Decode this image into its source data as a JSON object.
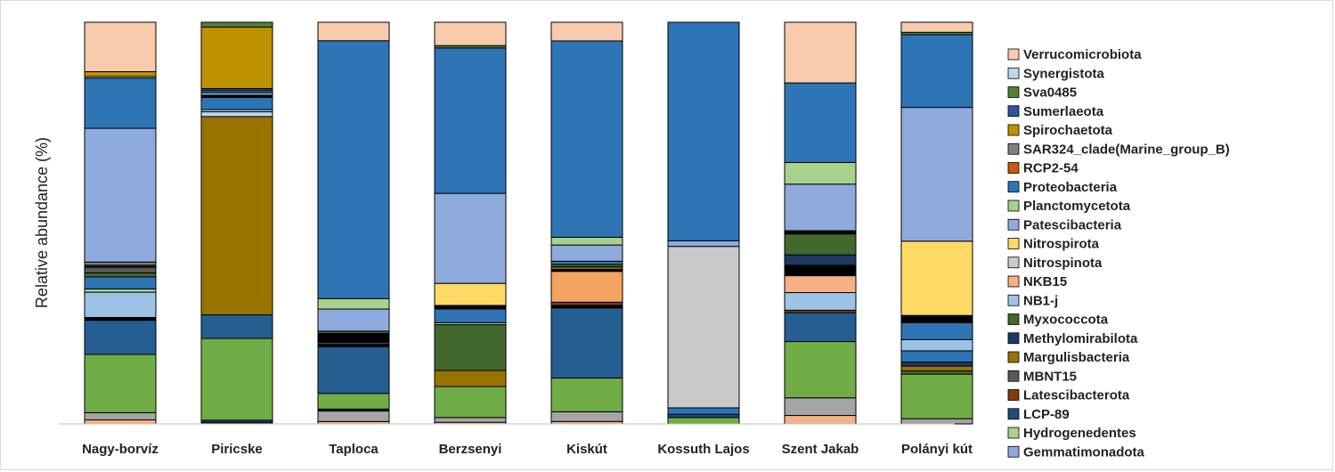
{
  "chart_data": {
    "type": "bar",
    "stacked": true,
    "percent": true,
    "ylabel": "Relative abundance (%)",
    "xlabel": "",
    "ylim": [
      0,
      100
    ],
    "grid": false,
    "legend_position": "right",
    "categories": [
      "Nagy-borvíz",
      "Piricske",
      "Taploca",
      "Berzsenyi",
      "Kiskút",
      "Kossuth Lajos",
      "Szent Jakab",
      "Polányi kút"
    ],
    "series": [
      {
        "name": "Gemmatimonadota",
        "color": "#8eaadb",
        "values": [
          0,
          0,
          0,
          0,
          0,
          0,
          0,
          0
        ]
      },
      {
        "name": "Hydrogenedentes",
        "color": "#a9d18e",
        "values": [
          0,
          0,
          0,
          0,
          0,
          0,
          0,
          0
        ]
      },
      {
        "name": "LCP-89",
        "color": "#1f4e79",
        "values": [
          0,
          0,
          0,
          0,
          0,
          0,
          0,
          0
        ]
      },
      {
        "name": "Latescibacterota",
        "color": "#843c0c",
        "values": [
          0,
          0,
          0,
          0,
          0,
          0,
          0,
          0
        ]
      },
      {
        "name": "MBNT15",
        "color": "#595959",
        "values": [
          0,
          0,
          0,
          0,
          0,
          0,
          0,
          0
        ]
      },
      {
        "name": "Margulisbacteria",
        "color": "#997300",
        "values": [
          0,
          0,
          0,
          0,
          0,
          0,
          0,
          0
        ]
      },
      {
        "name": "Methylomirabilota",
        "color": "#203864",
        "values": [
          0,
          0,
          0,
          0,
          0,
          0,
          0,
          0
        ]
      },
      {
        "name": "Myxococcota",
        "color": "#43682b",
        "values": [
          0,
          0,
          0,
          0,
          0,
          0,
          0,
          0
        ]
      },
      {
        "name": "NB1-j",
        "color": "#9dc3e6",
        "values": [
          0,
          0,
          0,
          0,
          0,
          0,
          0,
          0
        ]
      },
      {
        "name": "NKB15",
        "color": "#f4b183",
        "values": [
          0,
          0,
          0,
          0,
          0,
          0,
          0,
          0
        ]
      },
      {
        "name": "Nitrospinota",
        "color": "#c9c9c9",
        "values": [
          0,
          0,
          0,
          0,
          0,
          0,
          0,
          0
        ]
      },
      {
        "name": "Nitrospirota",
        "color": "#ffd966",
        "values": [
          0,
          0,
          0,
          0,
          0,
          0,
          0,
          0
        ]
      },
      {
        "name": "Patescibacteria",
        "color": "#8faadc",
        "values": [
          0,
          0,
          0,
          0,
          0,
          0,
          0,
          0
        ]
      },
      {
        "name": "Planctomycetota",
        "color": "#a9d18e",
        "values": [
          0,
          0,
          0,
          0,
          0,
          0,
          0,
          0
        ]
      },
      {
        "name": "Proteobacteria",
        "color": "#2e75b6",
        "values": [
          0,
          0,
          0,
          0,
          0,
          0,
          0,
          0
        ]
      },
      {
        "name": "RCP2-54",
        "color": "#c55a11",
        "values": [
          0,
          0,
          0,
          0,
          0,
          0,
          0,
          0
        ]
      },
      {
        "name": "SAR324_clade(Marine_group_B)",
        "color": "#7f7f7f",
        "values": [
          0,
          0,
          0,
          0,
          0,
          0,
          0,
          0
        ]
      },
      {
        "name": "Spirochaetota",
        "color": "#bf9000",
        "values": [
          0,
          0,
          0,
          0,
          0,
          0,
          0,
          0
        ]
      },
      {
        "name": "Sumerlaeota",
        "color": "#2f5597",
        "values": [
          0,
          0,
          0,
          0,
          0,
          0,
          0,
          0
        ]
      },
      {
        "name": "Sva0485",
        "color": "#548235",
        "values": [
          0,
          0,
          0,
          0,
          0,
          0,
          0,
          0
        ]
      },
      {
        "name": "Synergistota",
        "color": "#bdd7ee",
        "values": [
          0,
          0,
          0,
          0,
          0,
          0,
          0,
          0
        ]
      },
      {
        "name": "Verrucomicrobiota",
        "color": "#f8cbad",
        "values": [
          0,
          0,
          0,
          0,
          0,
          0,
          0,
          0
        ]
      }
    ],
    "bar_segments": [
      [
        {
          "color": "#f4b183",
          "value": 1
        },
        {
          "color": "#a5a5a5",
          "value": 1.8
        },
        {
          "color": "#70ad47",
          "value": 14.5
        },
        {
          "color": "#255e91",
          "value": 8.5
        },
        {
          "color": "#000000",
          "value": 0.7
        },
        {
          "color": "#9dc3e6",
          "value": 6.3
        },
        {
          "color": "#a9d18e",
          "value": 0.8
        },
        {
          "color": "#2e75b6",
          "value": 3
        },
        {
          "color": "#43682b",
          "value": 1
        },
        {
          "color": "#595959",
          "value": 1.4
        },
        {
          "color": "#262626",
          "value": 0.5
        },
        {
          "color": "#7f7f7f",
          "value": 0.8
        },
        {
          "color": "#8faadc",
          "value": 33.3
        },
        {
          "color": "#2e75b6",
          "value": 12.5
        },
        {
          "color": "#bdd7ee",
          "value": 0.4
        },
        {
          "color": "#bf9000",
          "value": 1.2
        },
        {
          "color": "#f8cbad",
          "value": 12.3
        }
      ],
      [
        {
          "color": "#f4b183",
          "value": 0.3
        },
        {
          "color": "#203864",
          "value": 0.7
        },
        {
          "color": "#70ad47",
          "value": 22.2
        },
        {
          "color": "#255e91",
          "value": 6.4
        },
        {
          "color": "#997300",
          "value": 53.8
        },
        {
          "color": "#bdd7ee",
          "value": 1.3
        },
        {
          "color": "#9dc3e6",
          "value": 0.6
        },
        {
          "color": "#2e75b6",
          "value": 3.3
        },
        {
          "color": "#000000",
          "value": 0.6
        },
        {
          "color": "#8faadc",
          "value": 0.7
        },
        {
          "color": "#255e91",
          "value": 0.7
        },
        {
          "color": "#2e75b6",
          "value": 0.4
        },
        {
          "color": "#bf9000",
          "value": 16.7
        },
        {
          "color": "#548235",
          "value": 1.3
        }
      ],
      [
        {
          "color": "#f4b183",
          "value": 0.6
        },
        {
          "color": "#a5a5a5",
          "value": 2.6
        },
        {
          "color": "#000000",
          "value": 0.5
        },
        {
          "color": "#70ad47",
          "value": 3.9
        },
        {
          "color": "#255e91",
          "value": 11.6
        },
        {
          "color": "#000000",
          "value": 0.6
        },
        {
          "color": "#1f4e79",
          "value": 0.5
        },
        {
          "color": "#000000",
          "value": 2.2
        },
        {
          "color": "#43682b",
          "value": 0.6
        },
        {
          "color": "#8faadc",
          "value": 5.5
        },
        {
          "color": "#a9d18e",
          "value": 2.6
        },
        {
          "color": "#2e75b6",
          "value": 64.2
        },
        {
          "color": "#f8cbad",
          "value": 4.6
        }
      ],
      [
        {
          "color": "#f4b183",
          "value": 0.4
        },
        {
          "color": "#a5a5a5",
          "value": 1.2
        },
        {
          "color": "#70ad47",
          "value": 7.7
        },
        {
          "color": "#997300",
          "value": 4
        },
        {
          "color": "#43682b",
          "value": 11.4
        },
        {
          "color": "#a9d18e",
          "value": 0.5
        },
        {
          "color": "#2e75b6",
          "value": 3.4
        },
        {
          "color": "#000000",
          "value": 0.9
        },
        {
          "color": "#ffd966",
          "value": 5.5
        },
        {
          "color": "#8faadc",
          "value": 22.4
        },
        {
          "color": "#2e75b6",
          "value": 36.2
        },
        {
          "color": "#548235",
          "value": 0.6
        },
        {
          "color": "#f8cbad",
          "value": 5.8
        }
      ],
      [
        {
          "color": "#f4b183",
          "value": 0.6
        },
        {
          "color": "#a5a5a5",
          "value": 2.4
        },
        {
          "color": "#70ad47",
          "value": 8.3
        },
        {
          "color": "#255e91",
          "value": 17.3
        },
        {
          "color": "#000000",
          "value": 0.6
        },
        {
          "color": "#843c0c",
          "value": 0.8
        },
        {
          "color": "#f4a460",
          "value": 7.6
        },
        {
          "color": "#000000",
          "value": 0.5
        },
        {
          "color": "#997300",
          "value": 0.6
        },
        {
          "color": "#43682b",
          "value": 0.6
        },
        {
          "color": "#2e75b6",
          "value": 0.8
        },
        {
          "color": "#8faadc",
          "value": 4
        },
        {
          "color": "#a9d18e",
          "value": 1.9
        },
        {
          "color": "#2e75b6",
          "value": 48.4
        },
        {
          "color": "#f8cbad",
          "value": 4.6
        }
      ],
      [
        {
          "color": "#70ad47",
          "value": 1.6
        },
        {
          "color": "#1f4e79",
          "value": 0.8
        },
        {
          "color": "#2e75b6",
          "value": 1.6
        },
        {
          "color": "#c9c9c9",
          "value": 40.2
        },
        {
          "color": "#8eaadb",
          "value": 1.4
        },
        {
          "color": "#2e75b6",
          "value": 54.4
        }
      ],
      [
        {
          "color": "#f4b183",
          "value": 2.1
        },
        {
          "color": "#a5a5a5",
          "value": 4.4
        },
        {
          "color": "#70ad47",
          "value": 14
        },
        {
          "color": "#255e91",
          "value": 7.2
        },
        {
          "color": "#843c0c",
          "value": 0.6
        },
        {
          "color": "#9dc3e6",
          "value": 4.4
        },
        {
          "color": "#f4b183",
          "value": 4.2
        },
        {
          "color": "#000000",
          "value": 2.6
        },
        {
          "color": "#203864",
          "value": 2.6
        },
        {
          "color": "#43682b",
          "value": 5.2
        },
        {
          "color": "#000000",
          "value": 0.8
        },
        {
          "color": "#8faadc",
          "value": 11.6
        },
        {
          "color": "#a9d18e",
          "value": 5.4
        },
        {
          "color": "#2e75b6",
          "value": 19.8
        },
        {
          "color": "#f8cbad",
          "value": 15.1
        }
      ],
      [
        {
          "color": "#a5a5a5",
          "value": 1.3
        },
        {
          "color": "#70ad47",
          "value": 11.1
        },
        {
          "color": "#43682b",
          "value": 0.8
        },
        {
          "color": "#997300",
          "value": 1.2
        },
        {
          "color": "#203864",
          "value": 1
        },
        {
          "color": "#2e75b6",
          "value": 2.8
        },
        {
          "color": "#9dc3e6",
          "value": 2.8
        },
        {
          "color": "#2e75b6",
          "value": 4.2
        },
        {
          "color": "#000000",
          "value": 1.8
        },
        {
          "color": "#ffd966",
          "value": 18.5
        },
        {
          "color": "#8faadc",
          "value": 33.3
        },
        {
          "color": "#2e75b6",
          "value": 18.1
        },
        {
          "color": "#548235",
          "value": 0.6
        },
        {
          "color": "#f8cbad",
          "value": 2.5
        }
      ]
    ]
  }
}
